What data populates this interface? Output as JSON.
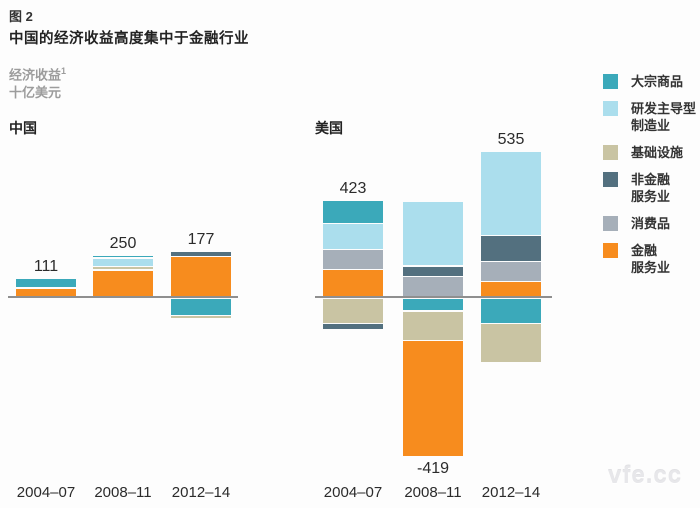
{
  "figure": {
    "number": "图 2",
    "title": "中国的经济收益高度集中于金融行业",
    "ylabel": "经济收益",
    "ylabel_superscript": "1",
    "ylabel_unit": "十亿美元"
  },
  "watermark": "vfe.cc",
  "colors": {
    "commodities": "#3BA9BA",
    "rd_manufacturing": "#ABDEED",
    "infrastructure": "#C9C4A3",
    "nonfinancial_services": "#53707F",
    "consumer_goods": "#A6AFB9",
    "financial_services": "#F78C1E",
    "axis": "#8F8F8F"
  },
  "legend": {
    "items": [
      {
        "label": "大宗商品",
        "color_key": "commodities"
      },
      {
        "label": "研发主导型\n制造业",
        "color_key": "rd_manufacturing"
      },
      {
        "label": "基础设施",
        "color_key": "infrastructure"
      },
      {
        "label": "非金融\n服务业",
        "color_key": "nonfinancial_services"
      },
      {
        "label": "消费品",
        "color_key": "consumer_goods"
      },
      {
        "label": "金融\n服务业",
        "color_key": "financial_services"
      }
    ]
  },
  "chart_data": [
    {
      "type": "bar",
      "stacked": true,
      "title": "中国",
      "unit": "十亿美元",
      "categories": [
        "2004–07",
        "2008–11",
        "2012–14"
      ],
      "totals": [
        111,
        250,
        177
      ],
      "series": [
        {
          "name": "大宗商品",
          "color_key": "commodities",
          "values": [
            55,
            13,
            -107
          ]
        },
        {
          "name": "研发主导型制造业",
          "color_key": "rd_manufacturing",
          "values": [
            0,
            46,
            0
          ]
        },
        {
          "name": "基础设施",
          "color_key": "infrastructure",
          "values": [
            0,
            12,
            -13
          ]
        },
        {
          "name": "非金融服务业",
          "color_key": "nonfinancial_services",
          "values": [
            0,
            0,
            27
          ]
        },
        {
          "name": "消费品",
          "color_key": "consumer_goods",
          "values": [
            0,
            0,
            0
          ]
        },
        {
          "name": "金融服务业",
          "color_key": "financial_services",
          "values": [
            56,
            179,
            270
          ]
        }
      ]
    },
    {
      "type": "bar",
      "stacked": true,
      "title": "美国",
      "unit": "十亿美元",
      "categories": [
        "2004–07",
        "2008–11",
        "2012–14"
      ],
      "totals": [
        423,
        -419,
        535
      ],
      "series": [
        {
          "name": "大宗商品",
          "color_key": "commodities",
          "values": [
            145,
            -75,
            -160
          ]
        },
        {
          "name": "研发主导型制造业",
          "color_key": "rd_manufacturing",
          "values": [
            165,
            425,
            560
          ]
        },
        {
          "name": "基础设施",
          "color_key": "infrastructure",
          "values": [
            -160,
            -190,
            -255
          ]
        },
        {
          "name": "非金融服务业",
          "color_key": "nonfinancial_services",
          "values": [
            -34,
            60,
            165
          ]
        },
        {
          "name": "消费品",
          "color_key": "consumer_goods",
          "values": [
            125,
            135,
            125
          ]
        },
        {
          "name": "金融服务业",
          "color_key": "financial_services",
          "values": [
            182,
            -774,
            100
          ]
        }
      ]
    }
  ]
}
